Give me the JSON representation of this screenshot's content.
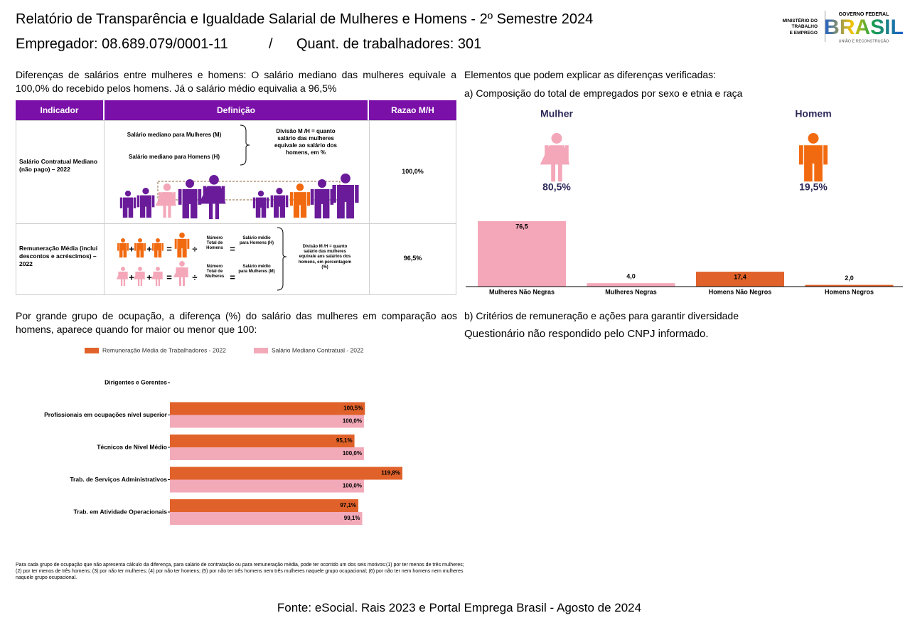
{
  "header": {
    "title": "Relatório de Transparência e Igualdade Salarial de Mulheres e Homens - 2º Semestre 2024",
    "employer": "Empregador: 08.689.079/0001-11",
    "separator": "/",
    "workers": "Quant. de trabalhadores: 301",
    "ministry": [
      "MINISTÉRIO DO",
      "TRABALHO",
      "E EMPREGO"
    ],
    "government": "GOVERNO FEDERAL",
    "brand": "BRASIL",
    "tagline": "UNIÃO E RECONSTRUÇÃO"
  },
  "intro": "Diferenças de salários entre mulheres e homens: O salário mediano das mulheres equivale a 100,0% do recebido pelos homens. Já o salário médio equivalia a 96,5%",
  "table": {
    "headers": [
      "Indicador",
      "Definição",
      "Razao M/H"
    ],
    "rows": [
      {
        "indicator": "Salário Contratual Mediano (não pago) – 2022",
        "women": "Salário mediano para Mulheres (M)",
        "men": "Salário mediano para Homens (H)",
        "division": "Divisão M /H = quanto salário das mulheres equivale ao salário dos homens, em %",
        "ratio": "100,0%"
      },
      {
        "indicator": "Remuneração Média (inclui descontos e acréscimos) – 2022",
        "men_count": "Número Total de Homens",
        "men_salary": "Salário médio para Homens (H)",
        "women_count": "Número Total de Mulheres",
        "women_salary": "Salário médio para Mulheres (M)",
        "division": "Divisão M /H = quanto salário das mulheres equivale aos salários dos homens, em porcentagem (%)",
        "ratio": "96,5%"
      }
    ],
    "operators": {
      "plus": "+",
      "equals": "=",
      "divide": "÷"
    }
  },
  "elements": {
    "heading": "Elementos que podem explicar as diferenças verificadas:",
    "part_a": "a) Composição do total de empregados por sexo e etnia e raça",
    "genders": [
      {
        "label": "Mulher",
        "share": "80,5%",
        "color": "#f4a7b9"
      },
      {
        "label": "Homem",
        "share": "19,5%",
        "color": "#f26a10"
      }
    ],
    "part_b": "b) Critérios de remuneração e ações para garantir diversidade",
    "answer": "Questionário não respondido pelo CNPJ informado."
  },
  "occupation_intro": "Por grande grupo de ocupação, a diferença (%) do salário das mulheres em comparação aos homens, aparece quando for maior ou menor que 100:",
  "chart_data": [
    {
      "type": "bar",
      "categories": [
        "Mulheres Não Negras",
        "Mulheres Negras",
        "Homens Não Negros",
        "Homens Negros"
      ],
      "values": [
        76.5,
        4.0,
        17.4,
        2.0
      ],
      "value_labels": [
        "76,5",
        "4,0",
        "17,4",
        "2,0"
      ],
      "colors": [
        "#f4a7b9",
        "#f4a7b9",
        "#e0622a",
        "#e0622a"
      ]
    },
    {
      "type": "barh",
      "categories": [
        "Dirigentes e Gerentes",
        "Profissionais em ocupações nível superior",
        "Técnicos de Nível Médio",
        "Trab. de Serviços Administrativos",
        "Trab. em Atividade Operacionais"
      ],
      "series": [
        {
          "name": "Remuneração Média de Trabalhadores - 2022",
          "color": "#e0622a",
          "values": [
            null,
            100.5,
            95.1,
            119.8,
            97.1
          ],
          "value_labels": [
            null,
            "100,5%",
            "95,1%",
            "119,8%",
            "97,1%"
          ]
        },
        {
          "name": "Salário Mediano Contratual - 2022",
          "color": "#f2aab9",
          "values": [
            null,
            100.0,
            100.0,
            100.0,
            99.1
          ],
          "value_labels": [
            null,
            "100,0%",
            "100,0%",
            "100,0%",
            "99,1%"
          ]
        }
      ]
    }
  ],
  "footnote": "Para cada grupo de ocupação que não apresenta cálculo da diferença, para salário de contratação ou para remuneração média, pode ter ocorrido um dos seis motivos:(1) por ter menos de três mulheres; (2) por ter menos de três homens; (3) por não ter mulheres; (4) por não ter homens; (5) por não ter três homens nem três mulheres naquele grupo ocupacional; (6) por não ter nem homens nem mulheres naquele grupo ocupacional.",
  "source": "Fonte: eSocial. Rais 2023 e Portal Emprega Brasil - Agosto de 2024"
}
